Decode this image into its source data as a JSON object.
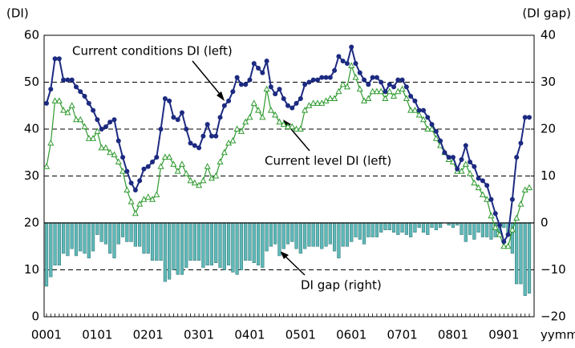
{
  "chart_data": {
    "type": "line",
    "y_label": "(DI)",
    "y2_label": "(DI gap)",
    "x_label": "yymm",
    "annotations": [
      "Current conditions DI (left)",
      "Current level DI (left)",
      "DI gap (right)"
    ],
    "categories": [
      "0001",
      null,
      null,
      null,
      null,
      null,
      null,
      null,
      null,
      null,
      null,
      null,
      "0101",
      null,
      null,
      null,
      null,
      null,
      null,
      null,
      null,
      null,
      null,
      null,
      "0201",
      null,
      null,
      null,
      null,
      null,
      null,
      null,
      null,
      null,
      null,
      null,
      "0301",
      null,
      null,
      null,
      null,
      null,
      null,
      null,
      null,
      null,
      null,
      null,
      "0401",
      null,
      null,
      null,
      null,
      null,
      null,
      null,
      null,
      null,
      null,
      null,
      "0501",
      null,
      null,
      null,
      null,
      null,
      null,
      null,
      null,
      null,
      null,
      null,
      "0601",
      null,
      null,
      null,
      null,
      null,
      null,
      null,
      null,
      null,
      null,
      null,
      "0701",
      null,
      null,
      null,
      null,
      null,
      null,
      null,
      null,
      null,
      null,
      null,
      "0801",
      null,
      null,
      null,
      null,
      null,
      null,
      null,
      null,
      null,
      null,
      null,
      "0901",
      null,
      null,
      null,
      null,
      null,
      null
    ],
    "ylim": [
      0,
      60
    ],
    "yticks": [
      0,
      10,
      20,
      30,
      40,
      50,
      60
    ],
    "y2lim": [
      -20,
      40
    ],
    "y2ticks": [
      {
        "value": -20,
        "label": "−20"
      },
      {
        "value": -10,
        "label": "−10"
      },
      0,
      10,
      20,
      30,
      40
    ],
    "grid": true,
    "series": [
      {
        "name": "Current conditions DI (left)",
        "type": "line",
        "marker": "circle",
        "color": "#1c2a80",
        "values": [
          45.5,
          48.5,
          55,
          55,
          50.5,
          50.5,
          50.5,
          49,
          48,
          47,
          45.5,
          44,
          42,
          40,
          40.5,
          41.5,
          42,
          37.5,
          34,
          31,
          28.5,
          27,
          29,
          31.5,
          32,
          33,
          34,
          40,
          46.5,
          46,
          42.5,
          42,
          43.5,
          40,
          37,
          36.5,
          36,
          38.5,
          41,
          38.5,
          38.5,
          42.5,
          45,
          46,
          48,
          51,
          49.5,
          49.5,
          50.5,
          54,
          53,
          52,
          54.5,
          49,
          47.5,
          48.5,
          46.5,
          45,
          44.5,
          45.5,
          46.5,
          49.5,
          50,
          50.5,
          50.5,
          51,
          51,
          51,
          52.5,
          55.5,
          54.5,
          54,
          57.5,
          54,
          52,
          50.5,
          49.5,
          51,
          51,
          50,
          48,
          49.5,
          49,
          50.5,
          50.5,
          49,
          47,
          46,
          44,
          44,
          42.5,
          41,
          39.5,
          37.5,
          35,
          34,
          34,
          31.5,
          33.5,
          36.5,
          33,
          32,
          29.5,
          29,
          28,
          25,
          22,
          19.5,
          16,
          17.5,
          25,
          34,
          37,
          42.5,
          42.5
        ]
      },
      {
        "name": "Current level DI (left)",
        "type": "line",
        "marker": "triangle",
        "color": "#2e9a2e",
        "values": [
          32,
          37,
          46,
          46,
          44,
          43.5,
          45,
          42,
          42,
          40.5,
          38,
          38,
          39.5,
          36,
          36,
          35,
          34.5,
          33,
          31,
          27,
          24.5,
          22,
          24,
          25,
          25.5,
          25,
          26,
          32,
          34,
          34,
          32.5,
          31,
          32.5,
          30.5,
          29,
          28.5,
          28,
          29,
          32,
          29.5,
          30,
          33,
          35,
          37,
          37.5,
          40,
          39.5,
          41.5,
          42.5,
          45.5,
          44,
          42.5,
          48.5,
          44,
          43,
          41.5,
          41,
          40.5,
          40.5,
          40,
          40,
          44,
          45,
          45.5,
          45.5,
          45.5,
          46,
          46.5,
          46.5,
          48,
          49.5,
          49,
          53.5,
          51,
          48.5,
          46,
          46.5,
          48,
          48,
          48,
          46.5,
          48,
          47,
          48,
          48.5,
          46.5,
          44,
          44,
          43,
          42,
          40,
          40,
          38,
          36.5,
          35,
          33.5,
          33,
          31,
          31,
          32.5,
          30.5,
          28.5,
          27.5,
          26,
          25,
          21.5,
          19,
          17.5,
          15,
          15,
          18.5,
          21,
          24,
          27,
          27.5
        ]
      },
      {
        "name": "DI gap (right)",
        "type": "bar",
        "axis": "y2",
        "color": "#5fb8b8",
        "values": [
          -13.5,
          -11.5,
          -9,
          -9,
          -6.5,
          -7,
          -5.5,
          -7,
          -6,
          -6.5,
          -7.5,
          -6,
          -2.5,
          -4,
          -4.5,
          -6.5,
          -7.5,
          -4.5,
          -3,
          -4,
          -4,
          -5,
          -5,
          -6.5,
          -6.5,
          -8,
          -8,
          -8,
          -12.5,
          -12,
          -10,
          -11,
          -11,
          -9.5,
          -8,
          -8,
          -8,
          -9.5,
          -9,
          -9,
          -8.5,
          -9.5,
          -10,
          -9,
          -10.5,
          -11,
          -10,
          -8,
          -8,
          -8.5,
          -9,
          -9.5,
          -6,
          -5,
          -4.5,
          -7,
          -5.5,
          -4.5,
          -4,
          -5.5,
          -6.5,
          -5.5,
          -5,
          -5,
          -5,
          -5.5,
          -5,
          -4.5,
          -6,
          -7.5,
          -5,
          -5,
          -4,
          -3,
          -3.5,
          -4.5,
          -3,
          -3,
          -3,
          -2,
          -1.5,
          -1.5,
          -2,
          -2.5,
          -2,
          -2.5,
          -3,
          -2,
          -1,
          -2,
          -2.5,
          -1,
          -1.5,
          -1,
          0,
          -0.5,
          -1,
          -0.5,
          -2.5,
          -4,
          -2.5,
          -3.5,
          -2,
          -3,
          -3,
          -3.5,
          -3,
          -2,
          -1,
          -2.5,
          -6.5,
          -13,
          -13,
          -15.5,
          -15
        ]
      }
    ]
  }
}
